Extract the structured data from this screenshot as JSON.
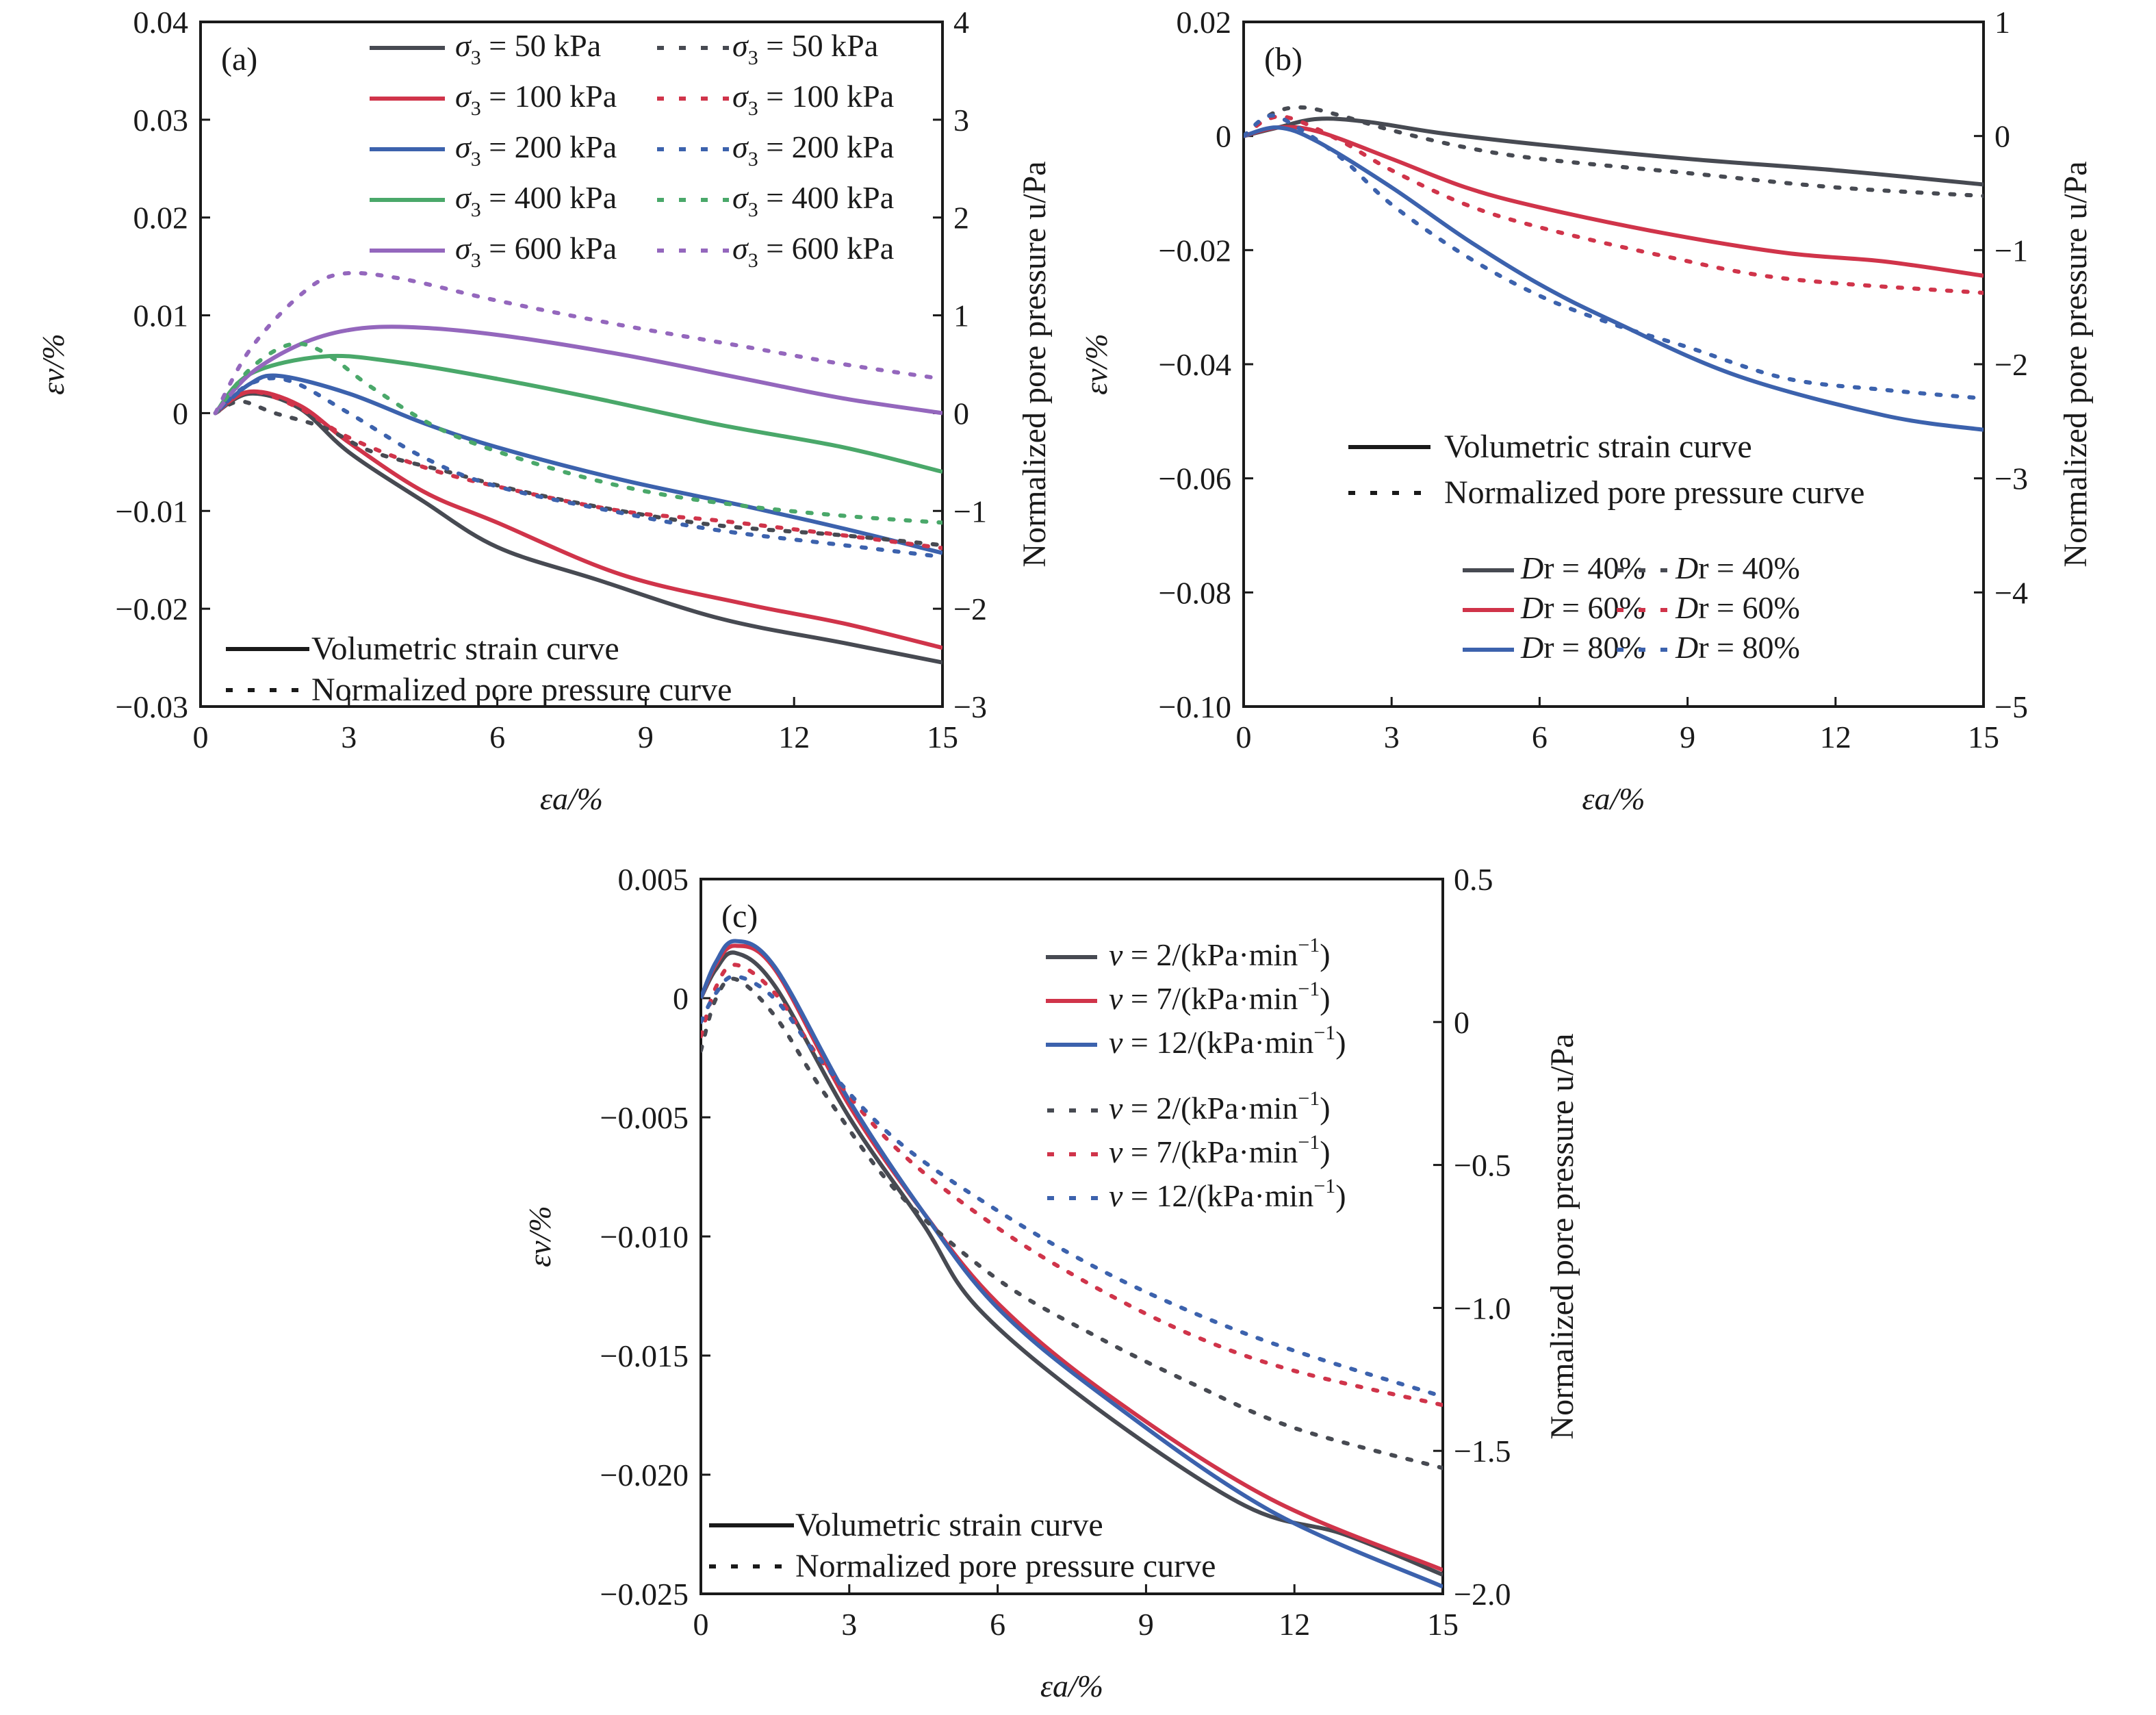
{
  "colors": {
    "gray": "#474a52",
    "red": "#d0344a",
    "blue": "#3c62ad",
    "green": "#4aa86a",
    "purple": "#9467bd",
    "axis": "#1a1a1a"
  },
  "chart_data": [
    {
      "id": "a",
      "type": "line",
      "panel_label": "(a)",
      "xlabel": "εa/%",
      "ylabel": "εv/%",
      "y2label": "Normalized pore pressure u/Pa",
      "xlim": [
        0,
        15
      ],
      "ylim": [
        -0.03,
        0.04
      ],
      "y2lim": [
        -3,
        4
      ],
      "xticks": [
        0,
        3,
        6,
        9,
        12,
        15
      ],
      "xtick_labels": [
        "0",
        "3",
        "6",
        "9",
        "12",
        "15"
      ],
      "yticks": [
        0.04,
        0.03,
        0.02,
        0.01,
        0,
        -0.01,
        -0.02,
        -0.03
      ],
      "ytick_labels": [
        "0.04",
        "0.03",
        "0.02",
        "0.01",
        "0",
        "−0.01",
        "−0.02",
        "−0.03"
      ],
      "y2ticks": [
        4,
        3,
        2,
        1,
        0,
        -1,
        -2,
        -3
      ],
      "y2tick_labels": [
        "4",
        "3",
        "2",
        "1",
        "0",
        "−1",
        "−2",
        "−3"
      ],
      "grid": false,
      "legend_placement": "top-right",
      "style_legend_placement": "bottom-left",
      "style_legend": [
        "Volumetric strain curve",
        "Normalized pore pressure curve"
      ],
      "series": [
        {
          "name": "σ3 = 50 kPa",
          "label_main": "σ",
          "label_sub": "3",
          "label_rest": " = 50 kPa",
          "color": "gray",
          "style": "solid",
          "axis": "left",
          "x": [
            0.3,
            1,
            2,
            3,
            4.5,
            6,
            8,
            10.5,
            13,
            15
          ],
          "y": [
            0,
            0.002,
            0.0005,
            -0.004,
            -0.009,
            -0.0137,
            -0.017,
            -0.021,
            -0.0235,
            -0.0255
          ]
        },
        {
          "name": "σ3 = 100 kPa",
          "label_main": "σ",
          "label_sub": "3",
          "label_rest": " = 100 kPa",
          "color": "red",
          "style": "solid",
          "axis": "left",
          "x": [
            0.3,
            1,
            2,
            3,
            4.5,
            6,
            8.5,
            11,
            13,
            15
          ],
          "y": [
            0,
            0.0022,
            0.0008,
            -0.003,
            -0.008,
            -0.0112,
            -0.0165,
            -0.0195,
            -0.0215,
            -0.024
          ]
        },
        {
          "name": "σ3 = 200 kPa",
          "label_main": "σ",
          "label_sub": "3",
          "label_rest": " = 200 kPa",
          "color": "blue",
          "style": "solid",
          "axis": "left",
          "x": [
            0.3,
            1,
            1.6,
            3,
            4.5,
            6,
            8.5,
            11,
            13,
            15
          ],
          "y": [
            0,
            0.003,
            0.0038,
            0.002,
            -0.001,
            -0.0035,
            -0.0068,
            -0.0095,
            -0.0118,
            -0.0143
          ]
        },
        {
          "name": "σ3 = 400 kPa",
          "label_main": "σ",
          "label_sub": "3",
          "label_rest": " = 400 kPa",
          "color": "green",
          "style": "solid",
          "axis": "left",
          "x": [
            0.3,
            1,
            2.5,
            4,
            6,
            8,
            10.5,
            13,
            15
          ],
          "y": [
            0,
            0.004,
            0.0058,
            0.0052,
            0.0035,
            0.0015,
            -0.0012,
            -0.0035,
            -0.006
          ]
        },
        {
          "name": "σ3 = 600 kPa",
          "label_main": "σ",
          "label_sub": "3",
          "label_rest": " = 600 kPa",
          "color": "purple",
          "style": "solid",
          "axis": "left",
          "x": [
            0.3,
            1,
            2,
            3,
            4.2,
            6,
            8.5,
            11,
            13,
            15
          ],
          "y": [
            0,
            0.004,
            0.007,
            0.0085,
            0.0088,
            0.008,
            0.006,
            0.0035,
            0.0015,
            0
          ]
        },
        {
          "name": "σ3 = 50 kPa",
          "label_main": "σ",
          "label_sub": "3",
          "label_rest": " = 50 kPa",
          "color": "gray",
          "style": "dotted",
          "axis": "right",
          "x": [
            0.3,
            0.8,
            1.5,
            2.5,
            3.5,
            5,
            6.5,
            8.5,
            10.5,
            13,
            15
          ],
          "y": [
            0,
            0.12,
            0.0,
            -0.15,
            -0.4,
            -0.6,
            -0.8,
            -1.0,
            -1.15,
            -1.25,
            -1.35
          ]
        },
        {
          "name": "σ3 = 100 kPa",
          "label_main": "σ",
          "label_sub": "3",
          "label_rest": " = 100 kPa",
          "color": "red",
          "style": "dotted",
          "axis": "right",
          "x": [
            0.3,
            1,
            2,
            3,
            4.5,
            6,
            8.5,
            10.5,
            13,
            15
          ],
          "y": [
            0,
            0.22,
            0.05,
            -0.25,
            -0.55,
            -0.75,
            -1.0,
            -1.1,
            -1.25,
            -1.38
          ]
        },
        {
          "name": "σ3 = 200 kPa",
          "label_main": "σ",
          "label_sub": "3",
          "label_rest": " = 200 kPa",
          "color": "blue",
          "style": "dotted",
          "axis": "right",
          "x": [
            0.3,
            1,
            1.8,
            3,
            4.5,
            6,
            8.5,
            10.5,
            13,
            15
          ],
          "y": [
            0,
            0.3,
            0.33,
            0.0,
            -0.45,
            -0.75,
            -1.02,
            -1.2,
            -1.35,
            -1.47
          ]
        },
        {
          "name": "σ3 = 400 kPa",
          "label_main": "σ",
          "label_sub": "3",
          "label_rest": " = 400 kPa",
          "color": "green",
          "style": "dotted",
          "axis": "right",
          "x": [
            0.3,
            1,
            1.8,
            2.5,
            3.5,
            5,
            7,
            9,
            11,
            13,
            15
          ],
          "y": [
            0,
            0.45,
            0.7,
            0.62,
            0.25,
            -0.2,
            -0.55,
            -0.8,
            -0.95,
            -1.05,
            -1.12
          ]
        },
        {
          "name": "σ3 = 600 kPa",
          "label_main": "σ",
          "label_sub": "3",
          "label_rest": " = 600 kPa",
          "color": "purple",
          "style": "dotted",
          "axis": "right",
          "x": [
            0.3,
            1,
            2,
            2.8,
            4,
            6,
            8.5,
            11,
            13,
            15
          ],
          "y": [
            0,
            0.65,
            1.2,
            1.42,
            1.38,
            1.15,
            0.9,
            0.68,
            0.5,
            0.35
          ]
        }
      ]
    },
    {
      "id": "b",
      "type": "line",
      "panel_label": "(b)",
      "xlabel": "εa/%",
      "ylabel": "εv/%",
      "y2label": "Normalized pore pressure u/Pa",
      "xlim": [
        0,
        15
      ],
      "ylim": [
        -0.1,
        0.02
      ],
      "y2lim": [
        -5,
        1
      ],
      "xticks": [
        0,
        3,
        6,
        9,
        12,
        15
      ],
      "xtick_labels": [
        "0",
        "3",
        "6",
        "9",
        "12",
        "15"
      ],
      "yticks": [
        0.02,
        0,
        -0.02,
        -0.04,
        -0.06,
        -0.08,
        -0.1
      ],
      "ytick_labels": [
        "0.02",
        "0",
        "−0.02",
        "−0.04",
        "−0.06",
        "−0.08",
        "−0.10"
      ],
      "y2ticks": [
        1,
        0,
        -1,
        -2,
        -3,
        -4,
        -5
      ],
      "y2tick_labels": [
        "1",
        "0",
        "−1",
        "−2",
        "−3",
        "−4",
        "−5"
      ],
      "grid": false,
      "legend_placement": "bottom-right",
      "style_legend_placement": "center",
      "style_legend": [
        "Volumetric strain curve",
        "Normalized pore pressure curve"
      ],
      "series": [
        {
          "name": "Dr = 40%",
          "label_main": "D",
          "label_sub": "",
          "label_rest": "r = 40%",
          "color": "gray",
          "style": "solid",
          "axis": "left",
          "x": [
            0,
            0.7,
            1.5,
            2.5,
            4,
            6,
            9,
            12,
            15
          ],
          "y": [
            0,
            0.0015,
            0.003,
            0.0025,
            0.0005,
            -0.0015,
            -0.004,
            -0.006,
            -0.0085
          ]
        },
        {
          "name": "Dr = 60%",
          "label_main": "D",
          "label_sub": "",
          "label_rest": "r = 60%",
          "color": "red",
          "style": "solid",
          "axis": "left",
          "x": [
            0,
            0.7,
            1.5,
            3,
            4.5,
            6,
            8.5,
            11,
            13,
            15
          ],
          "y": [
            0,
            0.0015,
            0.0008,
            -0.004,
            -0.009,
            -0.0125,
            -0.017,
            -0.0205,
            -0.022,
            -0.0245
          ]
        },
        {
          "name": "Dr = 80%",
          "label_main": "D",
          "label_sub": "",
          "label_rest": "r = 80%",
          "color": "blue",
          "style": "solid",
          "axis": "left",
          "x": [
            0,
            0.7,
            1.5,
            3,
            4.5,
            6,
            7.5,
            10,
            13,
            15
          ],
          "y": [
            0,
            0.0015,
            -0.001,
            -0.009,
            -0.018,
            -0.026,
            -0.0325,
            -0.042,
            -0.049,
            -0.0515
          ]
        },
        {
          "name": "Dr = 40%",
          "label_main": "D",
          "label_sub": "",
          "label_rest": "r = 40%",
          "color": "gray",
          "style": "dotted",
          "axis": "right",
          "x": [
            0,
            0.6,
            1.2,
            2,
            3,
            4.5,
            6,
            9,
            12,
            15
          ],
          "y": [
            0,
            0.2,
            0.25,
            0.175,
            0.05,
            -0.1,
            -0.2,
            -0.325,
            -0.45,
            -0.525
          ]
        },
        {
          "name": "Dr = 60%",
          "label_main": "D",
          "label_sub": "",
          "label_rest": "r = 60%",
          "color": "red",
          "style": "dotted",
          "axis": "right",
          "x": [
            0,
            0.5,
            1,
            2,
            3,
            4.5,
            6,
            8.5,
            11,
            15
          ],
          "y": [
            0,
            0.15,
            0.15,
            -0.05,
            -0.3,
            -0.6,
            -0.8,
            -1.05,
            -1.25,
            -1.375
          ]
        },
        {
          "name": "Dr = 80%",
          "label_main": "D",
          "label_sub": "",
          "label_rest": "r = 80%",
          "color": "blue",
          "style": "dotted",
          "axis": "right",
          "x": [
            0,
            0.5,
            1,
            2,
            3,
            4.5,
            6,
            7.5,
            9,
            11,
            13,
            15
          ],
          "y": [
            0,
            0.175,
            0.1,
            -0.2,
            -0.6,
            -1.05,
            -1.4,
            -1.65,
            -1.85,
            -2.125,
            -2.225,
            -2.3
          ]
        }
      ]
    },
    {
      "id": "c",
      "type": "line",
      "panel_label": "(c)",
      "xlabel": "εa/%",
      "ylabel": "εv/%",
      "y2label": "Normalized pore pressure u/Pa",
      "xlim": [
        0,
        15
      ],
      "ylim": [
        -0.025,
        0.005
      ],
      "y2lim": [
        -2.0,
        0.5
      ],
      "xticks": [
        0,
        3,
        6,
        9,
        12,
        15
      ],
      "xtick_labels": [
        "0",
        "3",
        "6",
        "9",
        "12",
        "15"
      ],
      "yticks": [
        0.005,
        0,
        -0.005,
        -0.01,
        -0.015,
        -0.02,
        -0.025
      ],
      "ytick_labels": [
        "0.005",
        "0",
        "−0.005",
        "−0.010",
        "−0.015",
        "−0.020",
        "−0.025"
      ],
      "y2ticks": [
        0.5,
        0,
        -0.5,
        -1.0,
        -1.5,
        -2.0
      ],
      "y2tick_labels": [
        "0.5",
        "0",
        "−0.5",
        "−1.0",
        "−1.5",
        "−2.0"
      ],
      "grid": false,
      "legend_placement": "top-right",
      "style_legend_placement": "bottom-left",
      "style_legend": [
        "Volumetric strain curve",
        "Normalized pore pressure curve"
      ],
      "series": [
        {
          "name": "v = 2/(kPa·min−1)",
          "label_main": "v",
          "label_sub": "",
          "label_rest": " = 2/(kPa·min",
          "label_sup": "−1",
          "label_end": ")",
          "color": "gray",
          "style": "solid",
          "axis": "left",
          "x": [
            0,
            0.3,
            0.7,
            1.5,
            3,
            4.5,
            5.6,
            8,
            11,
            13,
            15
          ],
          "y": [
            0,
            0.0012,
            0.0019,
            0.0005,
            -0.005,
            -0.0095,
            -0.013,
            -0.0172,
            -0.0213,
            -0.0225,
            -0.0242
          ]
        },
        {
          "name": "v = 7/(kPa·min−1)",
          "label_main": "v",
          "label_sub": "",
          "label_rest": " = 7/(kPa·min",
          "label_sup": "−1",
          "label_end": ")",
          "color": "red",
          "style": "solid",
          "axis": "left",
          "x": [
            0,
            0.3,
            0.7,
            1.5,
            3,
            4.5,
            6,
            8.2,
            11.5,
            15
          ],
          "y": [
            0,
            0.0014,
            0.0022,
            0.0012,
            -0.0045,
            -0.009,
            -0.0128,
            -0.0166,
            -0.021,
            -0.024
          ]
        },
        {
          "name": "v = 12/(kPa·min−1)",
          "label_main": "v",
          "label_sub": "",
          "label_rest": " = 12/(kPa·min",
          "label_sup": "−1",
          "label_end": ")",
          "color": "blue",
          "style": "solid",
          "axis": "left",
          "x": [
            0,
            0.3,
            0.7,
            1.5,
            3,
            4.5,
            6,
            8.2,
            11.5,
            15
          ],
          "y": [
            0,
            0.0015,
            0.0024,
            0.0013,
            -0.0043,
            -0.009,
            -0.013,
            -0.0168,
            -0.0215,
            -0.0247
          ]
        },
        {
          "name": "v = 2/(kPa·min−1)",
          "label_main": "v",
          "label_sub": "",
          "label_rest": " = 2/(kPa·min",
          "label_sup": "−1",
          "label_end": ")",
          "color": "gray",
          "style": "dotted",
          "axis": "right",
          "x": [
            0,
            0.3,
            0.7,
            1.5,
            2.5,
            4,
            6,
            8,
            10,
            12,
            15
          ],
          "y": [
            -0.1,
            0.08,
            0.15,
            0.02,
            -0.25,
            -0.6,
            -0.9,
            -1.1,
            -1.27,
            -1.42,
            -1.56
          ]
        },
        {
          "name": "v = 7/(kPa·min−1)",
          "label_main": "v",
          "label_sub": "",
          "label_rest": " = 7/(kPa·min",
          "label_sup": "−1",
          "label_end": ")",
          "color": "red",
          "style": "dotted",
          "axis": "right",
          "x": [
            0,
            0.3,
            0.7,
            1.5,
            2.5,
            4,
            6,
            8,
            10,
            12,
            15
          ],
          "y": [
            -0.05,
            0.12,
            0.2,
            0.1,
            -0.15,
            -0.45,
            -0.72,
            -0.93,
            -1.1,
            -1.22,
            -1.34
          ]
        },
        {
          "name": "v = 12/(kPa·min−1)",
          "label_main": "v",
          "label_sub": "",
          "label_rest": " = 12/(kPa·min",
          "label_sup": "−1",
          "label_end": ")",
          "color": "blue",
          "style": "dotted",
          "axis": "right",
          "x": [
            0,
            0.3,
            0.7,
            1.5,
            2.5,
            4,
            6,
            8,
            10,
            12,
            15
          ],
          "y": [
            0,
            0.1,
            0.16,
            0.08,
            -0.15,
            -0.42,
            -0.66,
            -0.86,
            -1.02,
            -1.15,
            -1.31
          ]
        }
      ]
    }
  ]
}
